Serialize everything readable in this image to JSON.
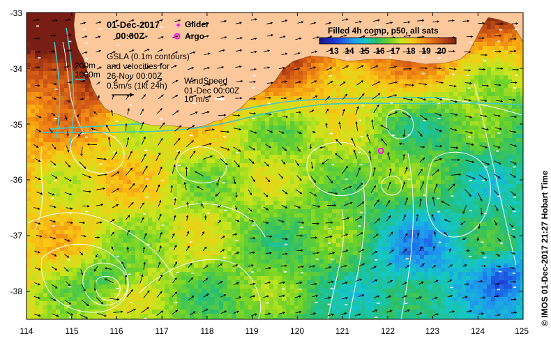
{
  "title": {
    "date": "01-Dec-2017",
    "time": "00:00Z"
  },
  "legend": {
    "glider": "Glider",
    "argo": "Argo",
    "glider_color": "#ff00ff",
    "argo_color": "#ff00ff"
  },
  "gsla_note": [
    "GSLA (0.1m contours)",
    "and velocities for",
    "26-Nov 00:00Z",
    "0.5m/s (1kt 24h)"
  ],
  "wind_note": [
    "WindSpeed",
    "01-Dec 00:00Z",
    "10 m/s"
  ],
  "bathy_labels": [
    "200m",
    "1000m"
  ],
  "colorbar": {
    "title": "Filled 4h comp, p50, all sats",
    "ticks": [
      "13",
      "14",
      "15",
      "16",
      "17",
      "18",
      "19",
      "20"
    ],
    "range": [
      12.5,
      21
    ]
  },
  "axes": {
    "lon_ticks": [
      "114",
      "115",
      "116",
      "117",
      "118",
      "119",
      "120",
      "121",
      "122",
      "123",
      "124",
      "125"
    ],
    "lat_ticks": [
      "-33",
      "-34",
      "-35",
      "-36",
      "-37",
      "-38"
    ],
    "lon_range": [
      114,
      125
    ],
    "lat_range": [
      -33,
      -38.5
    ]
  },
  "credit": "© IMOS 01-Dec-2017 21:27 Hobart Time",
  "colors": {
    "land": "#fcc89b",
    "contour": "#ffffff",
    "isobath": "#40c8c8",
    "arrow": "#000000"
  },
  "argo_float": {
    "lon": 121.85,
    "lat": -35.48
  }
}
